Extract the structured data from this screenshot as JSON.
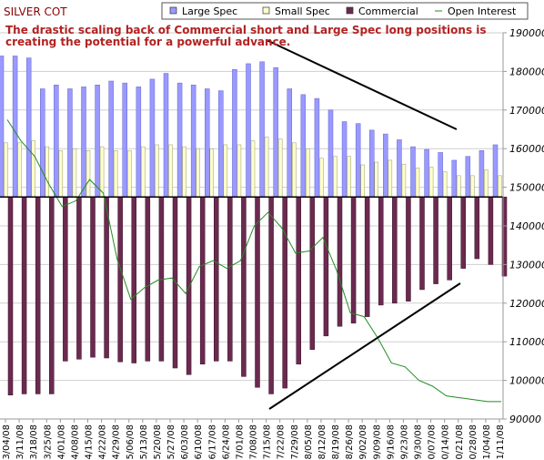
{
  "chart_data": {
    "type": "bar",
    "title": "SILVER COT",
    "annotation": "The drastic scaling back of Commercial short and Large Spec long positions is creating the potential for a powerful advance.",
    "colors": {
      "large_spec": "#9999ff",
      "small_spec": "#ffffcc",
      "commercial": "#6b2a4f",
      "open_interest": "#228b22",
      "grid": "#cfcfcf",
      "axis": "#999999",
      "title": "#8b0000",
      "annotation": "#b22222"
    },
    "legend": [
      {
        "name": "Large Spec",
        "marker": "square-blue"
      },
      {
        "name": "Small Spec",
        "marker": "square-yellow"
      },
      {
        "name": "Commercial",
        "marker": "square-purple"
      },
      {
        "name": "Open Interest",
        "marker": "line-green"
      }
    ],
    "legend_position": "top",
    "y_right_ticks": [
      "90000",
      "100000",
      "110000",
      "120000",
      "130000",
      "140000",
      "150000",
      "160000",
      "170000",
      "180000",
      "190000"
    ],
    "y_right_range": [
      90000,
      190000
    ],
    "baseline_value": 147500,
    "categories": [
      "03/04/08",
      "03/11/08",
      "03/18/08",
      "03/25/08",
      "04/01/08",
      "04/08/08",
      "04/15/08",
      "04/22/08",
      "04/29/08",
      "05/06/08",
      "05/13/08",
      "05/20/08",
      "05/27/08",
      "06/03/08",
      "06/10/08",
      "06/17/08",
      "06/24/08",
      "07/01/08",
      "07/08/08",
      "07/15/08",
      "07/22/08",
      "07/29/08",
      "08/05/08",
      "08/12/08",
      "08/19/08",
      "08/26/08",
      "09/02/08",
      "09/09/08",
      "09/16/08",
      "09/23/08",
      "09/30/08",
      "10/07/08",
      "10/14/08",
      "10/21/08",
      "10/28/08",
      "11/04/08",
      "11/11/08"
    ],
    "series": [
      {
        "name": "Large Spec",
        "values": [
          184000,
          184000,
          183500,
          175500,
          176500,
          175500,
          176000,
          176500,
          177500,
          177000,
          176000,
          178000,
          179500,
          177000,
          176500,
          175500,
          175000,
          180500,
          182000,
          182500,
          181000,
          175500,
          174000,
          173000,
          170000,
          167000,
          166500,
          164800,
          163800,
          162300,
          160500,
          159800,
          159000,
          157000,
          158000,
          159500,
          161000
        ]
      },
      {
        "name": "Small Spec",
        "values": [
          161500,
          161500,
          162000,
          160500,
          159500,
          160000,
          159500,
          160500,
          159500,
          159500,
          160500,
          161000,
          161000,
          160500,
          160000,
          160000,
          161000,
          161000,
          162000,
          163000,
          162500,
          161500,
          160000,
          157500,
          158000,
          158000,
          155800,
          156500,
          157000,
          156000,
          155000,
          155200,
          154000,
          153000,
          153000,
          154500,
          153000
        ]
      },
      {
        "name": "Commercial",
        "values": [
          96200,
          96500,
          96500,
          96500,
          105000,
          105500,
          106000,
          105800,
          104800,
          104500,
          105000,
          105000,
          103200,
          101500,
          104200,
          105000,
          105000,
          101000,
          98200,
          96500,
          98000,
          104200,
          108000,
          111500,
          114000,
          114800,
          116500,
          119500,
          120000,
          120500,
          123500,
          125000,
          126000,
          129000,
          131500,
          130000,
          127000
        ]
      },
      {
        "name": "Open Interest",
        "values": [
          167500,
          162000,
          158000,
          151000,
          145000,
          146500,
          152000,
          148500,
          131500,
          121000,
          124000,
          126000,
          126500,
          122500,
          129500,
          131000,
          129000,
          131000,
          140000,
          143500,
          139500,
          133000,
          133500,
          137000,
          128500,
          117500,
          116500,
          111000,
          104500,
          103500,
          100000,
          98500,
          96000,
          95500,
          95000,
          94500,
          94500
        ]
      }
    ]
  }
}
